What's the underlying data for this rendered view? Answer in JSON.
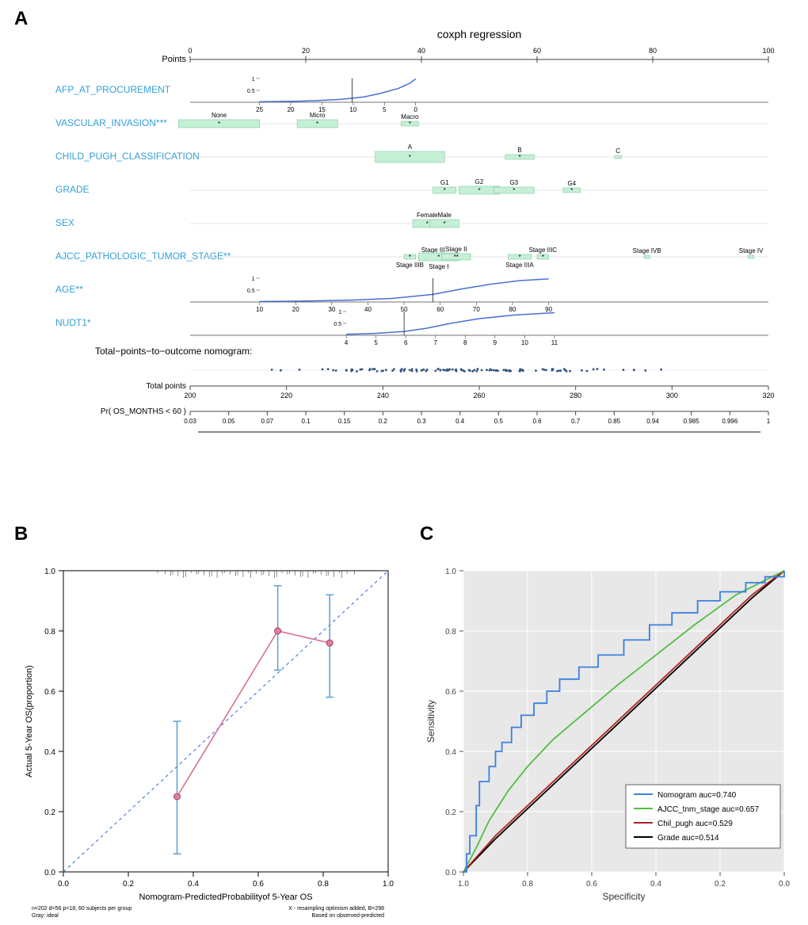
{
  "panelA": {
    "label": "A",
    "title": "coxph regression",
    "pointsAxis": {
      "label": "Points",
      "min": 0,
      "max": 100,
      "ticks": [
        0,
        20,
        40,
        60,
        80,
        100
      ]
    },
    "rows": [
      {
        "name": "AFP_AT_PROCUREMENT",
        "axis": {
          "min": 25,
          "max": 0,
          "ticks": [
            25,
            20,
            15,
            10,
            5,
            0
          ]
        },
        "curve": [
          [
            12,
            0.02
          ],
          [
            18,
            0.04
          ],
          [
            22,
            0.07
          ],
          [
            26,
            0.12
          ],
          [
            30,
            0.22
          ],
          [
            33,
            0.38
          ],
          [
            36,
            0.58
          ],
          [
            38,
            0.8
          ],
          [
            39,
            0.98
          ]
        ],
        "yaxis": {
          "ticks": [
            0.5,
            1
          ]
        },
        "vline": 28
      },
      {
        "name": "VASCULAR_INVASION***",
        "boxes": [
          {
            "label": "None",
            "x": 5,
            "w": 14,
            "h": 10,
            "star": "*"
          },
          {
            "label": "Micro",
            "x": 22,
            "w": 7,
            "h": 10,
            "star": "*"
          },
          {
            "label": "Macro",
            "x": 38,
            "w": 3,
            "h": 6,
            "star": "*"
          }
        ]
      },
      {
        "name": "CHILD_PUGH_CLASSIFICATION",
        "boxes": [
          {
            "label": "A",
            "x": 38,
            "w": 12,
            "h": 14,
            "star": "*"
          },
          {
            "label": "B",
            "x": 57,
            "w": 5,
            "h": 6,
            "star": "*"
          },
          {
            "label": "C",
            "x": 74,
            "w": 1.2,
            "h": 4,
            "star": ""
          }
        ]
      },
      {
        "name": "GRADE",
        "boxes": [
          {
            "label": "G1",
            "x": 44,
            "w": 4,
            "h": 8,
            "star": "*"
          },
          {
            "label": "G2",
            "x": 50,
            "w": 7,
            "h": 10,
            "star": "*"
          },
          {
            "label": "G3",
            "x": 56,
            "w": 7,
            "h": 8,
            "star": "*"
          },
          {
            "label": "G4",
            "x": 66,
            "w": 3,
            "h": 6,
            "star": "*"
          }
        ]
      },
      {
        "name": "SEX",
        "boxes": [
          {
            "label": "Female",
            "x": 41,
            "w": 5,
            "h": 10,
            "star": "*"
          },
          {
            "label": "Male",
            "x": 44,
            "w": 5,
            "h": 10,
            "star": "*"
          }
        ]
      },
      {
        "name": "AJCC_PATHOLOGIC_TUMOR_STAGE**",
        "boxes": [
          {
            "label": "Stage IIIB",
            "x": 38,
            "w": 2,
            "h": 6,
            "star": "*",
            "labelBelow": true
          },
          {
            "label": "Stage III",
            "x": 42,
            "w": 2,
            "h": 6,
            "star": "*"
          },
          {
            "label": "Stage I",
            "x": 43,
            "w": 7,
            "h": 10,
            "star": "*",
            "labelBelow": true
          },
          {
            "label": "Stage II",
            "x": 46,
            "w": 5,
            "h": 8,
            "star": "**"
          },
          {
            "label": "Stage IIIA",
            "x": 57,
            "w": 4,
            "h": 6,
            "star": "*",
            "labelBelow": true
          },
          {
            "label": "Stage IIIC",
            "x": 61,
            "w": 2,
            "h": 6,
            "star": "*"
          },
          {
            "label": "Stage IVB",
            "x": 79,
            "w": 1,
            "h": 4,
            "star": ""
          },
          {
            "label": "Stage IV",
            "x": 97,
            "w": 1,
            "h": 4,
            "star": ""
          }
        ]
      },
      {
        "name": "AGE**",
        "axis": {
          "min": 10,
          "max": 90,
          "ticks": [
            10,
            20,
            30,
            40,
            50,
            60,
            70,
            80,
            90
          ]
        },
        "curve": [
          [
            12,
            0.02
          ],
          [
            20,
            0.04
          ],
          [
            28,
            0.08
          ],
          [
            35,
            0.15
          ],
          [
            42,
            0.32
          ],
          [
            47,
            0.55
          ],
          [
            52,
            0.75
          ],
          [
            57,
            0.9
          ],
          [
            62,
            0.97
          ]
        ],
        "yaxis": {
          "ticks": [
            0.5,
            1
          ]
        },
        "vline": 42
      },
      {
        "name": "NUDT1*",
        "axis": {
          "min": 4,
          "max": 11,
          "ticks": [
            4,
            5,
            6,
            7,
            8,
            9,
            10,
            11
          ]
        },
        "curve": [
          [
            27,
            0.04
          ],
          [
            32,
            0.08
          ],
          [
            37,
            0.16
          ],
          [
            41,
            0.3
          ],
          [
            45,
            0.5
          ],
          [
            50,
            0.7
          ],
          [
            56,
            0.85
          ],
          [
            63,
            0.95
          ]
        ],
        "yaxis": {
          "ticks": [
            0.5,
            1
          ]
        },
        "vline": 37
      }
    ],
    "totalLabel": "Total−points−to−outcome nomogram:",
    "totalPoints": {
      "label": "Total points",
      "min": 200,
      "max": 320,
      "ticks": [
        200,
        220,
        240,
        260,
        280,
        300,
        320
      ]
    },
    "prob": {
      "label": "Pr( OS_MONTHS < 60 )",
      "ticks": [
        0.03,
        0.05,
        0.07,
        0.1,
        0.15,
        0.2,
        0.3,
        0.4,
        0.5,
        0.6,
        0.7,
        0.85,
        0.94,
        0.985,
        0.996,
        1
      ]
    },
    "scatterN": 120,
    "colors": {
      "label": "#33a0d6",
      "axis": "#444444",
      "box": "#c5f0d5",
      "boxBorder": "#6fbf8f",
      "curve": "#4a6fd4",
      "point": "#335580"
    }
  },
  "panelB": {
    "label": "B",
    "xlim": [
      0,
      1
    ],
    "ylim": [
      0,
      1
    ],
    "xticks": [
      0.0,
      0.2,
      0.4,
      0.6,
      0.8,
      1.0
    ],
    "yticks": [
      0.0,
      0.2,
      0.4,
      0.6,
      0.8,
      1.0
    ],
    "xlabel": "Nomogram-PredictedProbabilityof 5-Year OS",
    "ylabel": "Actual 5-Year OS(proportion)",
    "diagonal_color": "#4f7fe0",
    "line_color": "#d46a8a",
    "error_color": "#5aa0d0",
    "point_color": "#e07fa0",
    "points": [
      {
        "x": 0.35,
        "y": 0.25,
        "lo": 0.06,
        "hi": 0.5
      },
      {
        "x": 0.66,
        "y": 0.8,
        "lo": 0.67,
        "hi": 0.95
      },
      {
        "x": 0.82,
        "y": 0.76,
        "lo": 0.58,
        "hi": 0.92
      }
    ],
    "footnote_left": "n=202 d=56 p=18, 60 subjects per group",
    "footnote_left2": "Gray: ideal",
    "footnote_right": "X - resampling optimism added, B=298",
    "footnote_right2": "Based on observed-predicted",
    "bg": "#ffffff"
  },
  "panelC": {
    "label": "C",
    "xlim": [
      1,
      0
    ],
    "ylim": [
      0,
      1
    ],
    "xticks": [
      1.0,
      0.8,
      0.6,
      0.4,
      0.2,
      0.0
    ],
    "yticks": [
      0.0,
      0.2,
      0.4,
      0.6,
      0.8,
      1.0
    ],
    "xlabel": "Specificity",
    "ylabel": "Sensitivity",
    "bg": "#e8e8e8",
    "grid_color": "#ffffff",
    "legend": [
      {
        "label": "Nomogram auc=0.740",
        "color": "#3a7fe0"
      },
      {
        "label": "AJCC_tnm_stage auc=0.657",
        "color": "#4fbf3f"
      },
      {
        "label": "Chil_pugh auc=0.529",
        "color": "#b02020"
      },
      {
        "label": "Grade auc=0.514",
        "color": "#000000"
      }
    ],
    "curves": {
      "Nomogram": [
        [
          1,
          0
        ],
        [
          0.99,
          0.06
        ],
        [
          0.98,
          0.12
        ],
        [
          0.96,
          0.22
        ],
        [
          0.95,
          0.3
        ],
        [
          0.92,
          0.35
        ],
        [
          0.9,
          0.4
        ],
        [
          0.88,
          0.43
        ],
        [
          0.85,
          0.48
        ],
        [
          0.82,
          0.52
        ],
        [
          0.78,
          0.56
        ],
        [
          0.74,
          0.6
        ],
        [
          0.7,
          0.64
        ],
        [
          0.64,
          0.68
        ],
        [
          0.58,
          0.72
        ],
        [
          0.5,
          0.77
        ],
        [
          0.42,
          0.82
        ],
        [
          0.35,
          0.86
        ],
        [
          0.27,
          0.9
        ],
        [
          0.2,
          0.93
        ],
        [
          0.12,
          0.96
        ],
        [
          0.06,
          0.98
        ],
        [
          0.0,
          1.0
        ]
      ],
      "AJCC": [
        [
          1,
          0
        ],
        [
          0.96,
          0.08
        ],
        [
          0.92,
          0.17
        ],
        [
          0.86,
          0.27
        ],
        [
          0.8,
          0.35
        ],
        [
          0.72,
          0.44
        ],
        [
          0.62,
          0.53
        ],
        [
          0.52,
          0.62
        ],
        [
          0.4,
          0.72
        ],
        [
          0.28,
          0.82
        ],
        [
          0.15,
          0.92
        ],
        [
          0.0,
          1.0
        ]
      ],
      "Chil": [
        [
          1,
          0
        ],
        [
          0.9,
          0.12
        ],
        [
          0.8,
          0.22
        ],
        [
          0.7,
          0.32
        ],
        [
          0.6,
          0.42
        ],
        [
          0.5,
          0.52
        ],
        [
          0.4,
          0.62
        ],
        [
          0.3,
          0.72
        ],
        [
          0.2,
          0.82
        ],
        [
          0.1,
          0.92
        ],
        [
          0.0,
          1.0
        ]
      ],
      "Grade": [
        [
          1,
          0
        ],
        [
          0.9,
          0.11
        ],
        [
          0.8,
          0.21
        ],
        [
          0.7,
          0.31
        ],
        [
          0.6,
          0.41
        ],
        [
          0.5,
          0.51
        ],
        [
          0.4,
          0.61
        ],
        [
          0.3,
          0.71
        ],
        [
          0.2,
          0.81
        ],
        [
          0.1,
          0.91
        ],
        [
          0.0,
          1.0
        ]
      ]
    }
  }
}
